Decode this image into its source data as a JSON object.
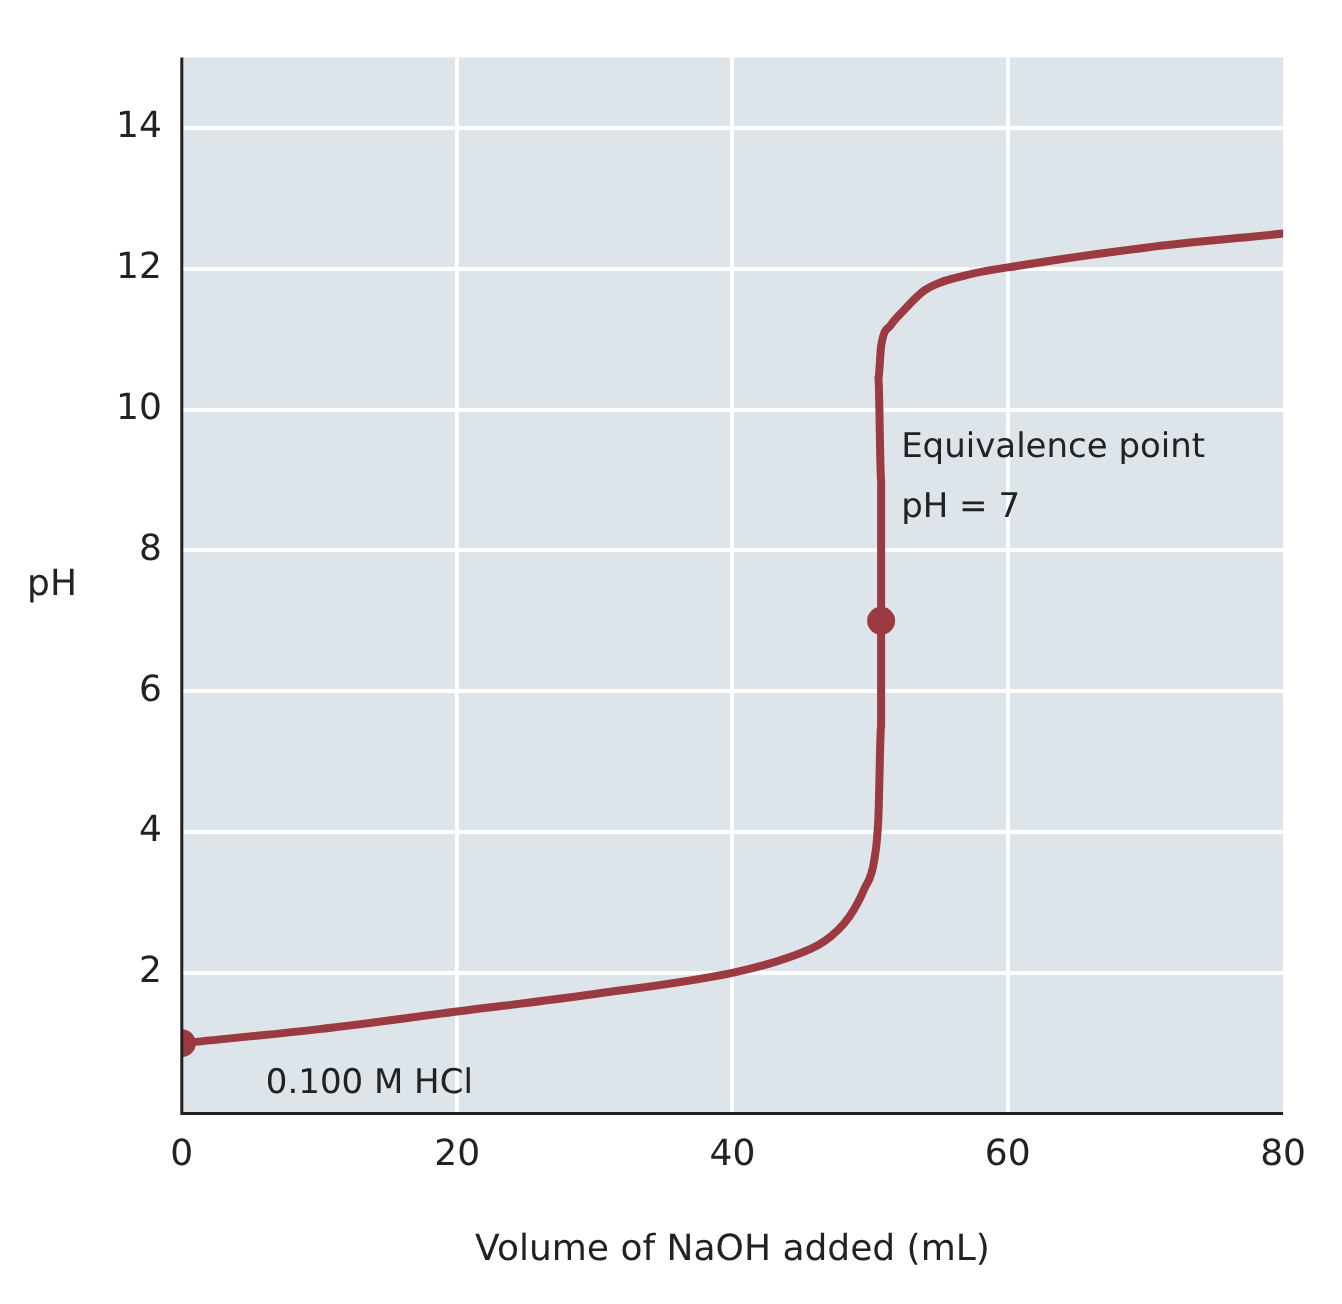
{
  "chart_data": {
    "type": "line",
    "xlabel": "Volume of NaOH added (mL)",
    "ylabel": "pH",
    "xlim": [
      0,
      80
    ],
    "xticks": [
      0,
      20,
      40,
      60,
      80
    ],
    "ylim": [
      0,
      15
    ],
    "yticks": [
      2,
      4,
      6,
      8,
      10,
      12,
      14
    ],
    "grid": true,
    "series": [
      {
        "type": "line",
        "color": "#9b3a40",
        "marker": "none",
        "x": [
          0,
          10,
          20,
          30,
          40,
          43.8,
          46.7,
          48.5,
          49.6,
          50.3,
          50.6,
          50.8,
          50.8,
          50.8,
          50.6,
          50.8,
          51.5,
          52.4,
          54,
          56.8,
          61,
          70,
          80
        ],
        "values": [
          1.0,
          1.2,
          1.45,
          1.7,
          2.0,
          2.2,
          2.45,
          2.8,
          3.2,
          3.6,
          4.2,
          5.5,
          7,
          9,
          10.45,
          10.9,
          11.2,
          11.4,
          11.7,
          11.9,
          12.05,
          12.3,
          12.5
        ]
      },
      {
        "type": "scatter",
        "color": "#9b3a40",
        "marker": "circle",
        "x": [
          0,
          50.8
        ],
        "values": [
          1,
          7
        ]
      }
    ],
    "annotations": [
      {
        "text": "0.100 M HCl",
        "x": 0,
        "y": 1
      },
      {
        "text": "Equivalence point\npH = 7",
        "x": 50.8,
        "y": 7
      }
    ]
  }
}
